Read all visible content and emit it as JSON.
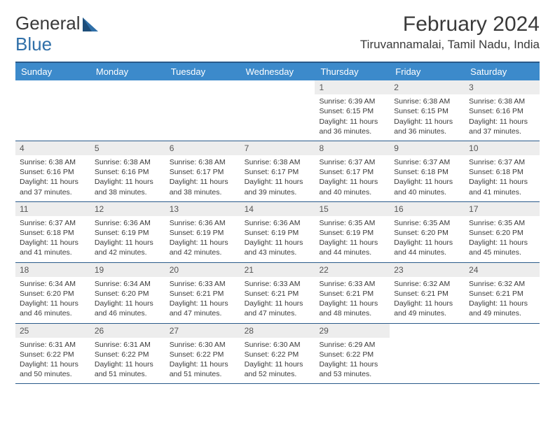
{
  "logo": {
    "text1": "General",
    "text2": "Blue"
  },
  "title": "February 2024",
  "location": "Tiruvannamalai, Tamil Nadu, India",
  "colors": {
    "header_bg": "#3c8acb",
    "header_fg": "#ffffff",
    "rule": "#2a5a8a",
    "daynum_bg": "#ededed",
    "text": "#3a3a3a",
    "logo_accent": "#2f6fa8"
  },
  "day_names": [
    "Sunday",
    "Monday",
    "Tuesday",
    "Wednesday",
    "Thursday",
    "Friday",
    "Saturday"
  ],
  "weeks": [
    [
      null,
      null,
      null,
      null,
      {
        "n": "1",
        "sr": "6:39 AM",
        "ss": "6:15 PM",
        "dl": "11 hours and 36 minutes."
      },
      {
        "n": "2",
        "sr": "6:38 AM",
        "ss": "6:15 PM",
        "dl": "11 hours and 36 minutes."
      },
      {
        "n": "3",
        "sr": "6:38 AM",
        "ss": "6:16 PM",
        "dl": "11 hours and 37 minutes."
      }
    ],
    [
      {
        "n": "4",
        "sr": "6:38 AM",
        "ss": "6:16 PM",
        "dl": "11 hours and 37 minutes."
      },
      {
        "n": "5",
        "sr": "6:38 AM",
        "ss": "6:16 PM",
        "dl": "11 hours and 38 minutes."
      },
      {
        "n": "6",
        "sr": "6:38 AM",
        "ss": "6:17 PM",
        "dl": "11 hours and 38 minutes."
      },
      {
        "n": "7",
        "sr": "6:38 AM",
        "ss": "6:17 PM",
        "dl": "11 hours and 39 minutes."
      },
      {
        "n": "8",
        "sr": "6:37 AM",
        "ss": "6:17 PM",
        "dl": "11 hours and 40 minutes."
      },
      {
        "n": "9",
        "sr": "6:37 AM",
        "ss": "6:18 PM",
        "dl": "11 hours and 40 minutes."
      },
      {
        "n": "10",
        "sr": "6:37 AM",
        "ss": "6:18 PM",
        "dl": "11 hours and 41 minutes."
      }
    ],
    [
      {
        "n": "11",
        "sr": "6:37 AM",
        "ss": "6:18 PM",
        "dl": "11 hours and 41 minutes."
      },
      {
        "n": "12",
        "sr": "6:36 AM",
        "ss": "6:19 PM",
        "dl": "11 hours and 42 minutes."
      },
      {
        "n": "13",
        "sr": "6:36 AM",
        "ss": "6:19 PM",
        "dl": "11 hours and 42 minutes."
      },
      {
        "n": "14",
        "sr": "6:36 AM",
        "ss": "6:19 PM",
        "dl": "11 hours and 43 minutes."
      },
      {
        "n": "15",
        "sr": "6:35 AM",
        "ss": "6:19 PM",
        "dl": "11 hours and 44 minutes."
      },
      {
        "n": "16",
        "sr": "6:35 AM",
        "ss": "6:20 PM",
        "dl": "11 hours and 44 minutes."
      },
      {
        "n": "17",
        "sr": "6:35 AM",
        "ss": "6:20 PM",
        "dl": "11 hours and 45 minutes."
      }
    ],
    [
      {
        "n": "18",
        "sr": "6:34 AM",
        "ss": "6:20 PM",
        "dl": "11 hours and 46 minutes."
      },
      {
        "n": "19",
        "sr": "6:34 AM",
        "ss": "6:20 PM",
        "dl": "11 hours and 46 minutes."
      },
      {
        "n": "20",
        "sr": "6:33 AM",
        "ss": "6:21 PM",
        "dl": "11 hours and 47 minutes."
      },
      {
        "n": "21",
        "sr": "6:33 AM",
        "ss": "6:21 PM",
        "dl": "11 hours and 47 minutes."
      },
      {
        "n": "22",
        "sr": "6:33 AM",
        "ss": "6:21 PM",
        "dl": "11 hours and 48 minutes."
      },
      {
        "n": "23",
        "sr": "6:32 AM",
        "ss": "6:21 PM",
        "dl": "11 hours and 49 minutes."
      },
      {
        "n": "24",
        "sr": "6:32 AM",
        "ss": "6:21 PM",
        "dl": "11 hours and 49 minutes."
      }
    ],
    [
      {
        "n": "25",
        "sr": "6:31 AM",
        "ss": "6:22 PM",
        "dl": "11 hours and 50 minutes."
      },
      {
        "n": "26",
        "sr": "6:31 AM",
        "ss": "6:22 PM",
        "dl": "11 hours and 51 minutes."
      },
      {
        "n": "27",
        "sr": "6:30 AM",
        "ss": "6:22 PM",
        "dl": "11 hours and 51 minutes."
      },
      {
        "n": "28",
        "sr": "6:30 AM",
        "ss": "6:22 PM",
        "dl": "11 hours and 52 minutes."
      },
      {
        "n": "29",
        "sr": "6:29 AM",
        "ss": "6:22 PM",
        "dl": "11 hours and 53 minutes."
      },
      null,
      null
    ]
  ],
  "labels": {
    "sunrise": "Sunrise:",
    "sunset": "Sunset:",
    "daylight": "Daylight:"
  }
}
